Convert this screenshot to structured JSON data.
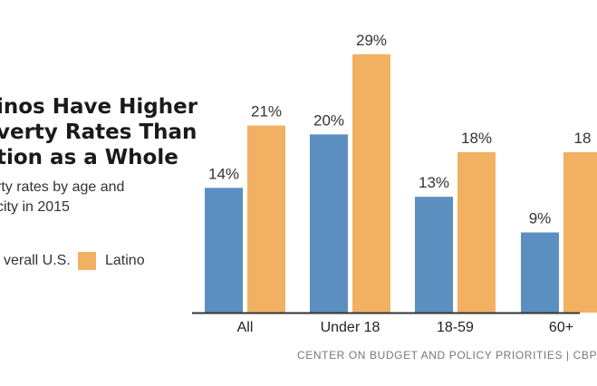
{
  "title_lines": [
    "inos Have Higher",
    "verty Rates Than",
    "tion as a Whole"
  ],
  "subtitle_lines": [
    "rty rates by age and",
    "city in 2015"
  ],
  "source": "CENTER ON BUDGET AND POLICY PRIORITIES | CBP",
  "colors": {
    "overall": "#5b8fbf",
    "latino": "#f2b162",
    "axis": "#333333"
  },
  "chart_data": {
    "type": "bar",
    "categories": [
      "All",
      "Under 18",
      "18-59",
      "60+"
    ],
    "series": [
      {
        "name": "verall U.S.",
        "values": [
          14,
          20,
          13,
          9
        ],
        "labels": [
          "14%",
          "20%",
          "13%",
          "9%"
        ]
      },
      {
        "name": "Latino",
        "values": [
          21,
          29,
          18,
          18
        ],
        "labels": [
          "21%",
          "29%",
          "18%",
          "18"
        ]
      }
    ],
    "ylim": [
      0,
      30
    ],
    "legend": "left"
  }
}
